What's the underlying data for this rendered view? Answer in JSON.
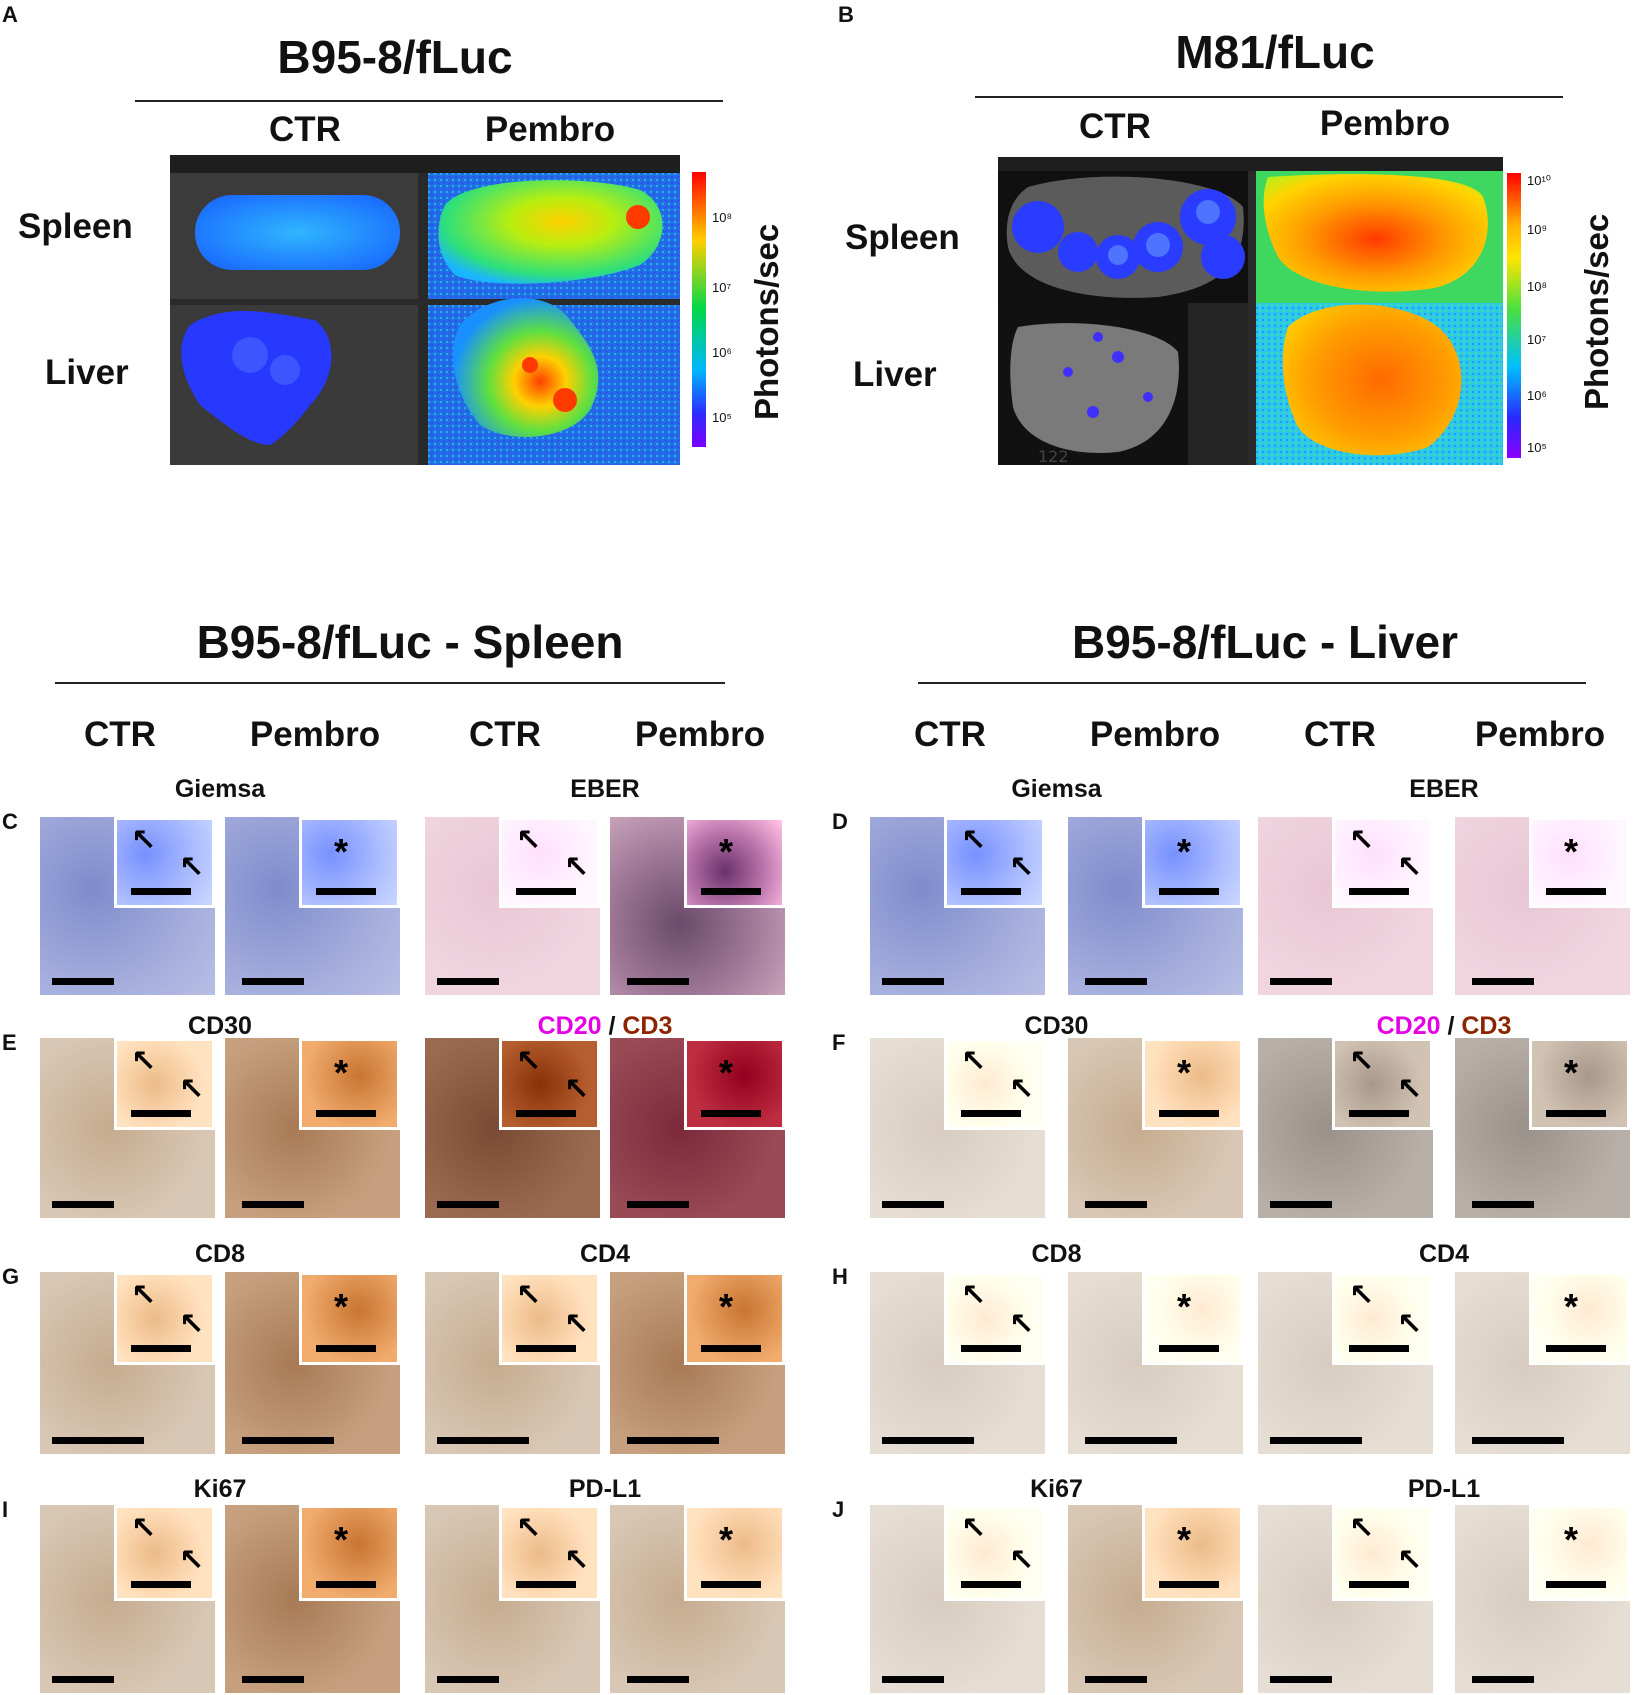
{
  "panels": {
    "A": {
      "letter": "A",
      "title": "B95-8/fLuc",
      "col_ctr": "CTR",
      "col_pembro": "Pembro",
      "row_spleen": "Spleen",
      "row_liver": "Liver",
      "colorbar_label": "Photons/sec",
      "colorbar_ticks": [
        "10⁸",
        "10⁷",
        "10⁶",
        "10⁵"
      ]
    },
    "B": {
      "letter": "B",
      "title": "M81/fLuc",
      "col_ctr": "CTR",
      "col_pembro": "Pembro",
      "row_spleen": "Spleen",
      "row_liver": "Liver",
      "colorbar_label": "Photons/sec",
      "colorbar_ticks": [
        "10¹⁰",
        "10⁹",
        "10⁸",
        "10⁷",
        "10⁶",
        "10⁵"
      ],
      "image_number": "122"
    },
    "spleen_section": {
      "title": "B95-8/fLuc - Spleen",
      "cols": [
        "CTR",
        "Pembro",
        "CTR",
        "Pembro"
      ]
    },
    "liver_section": {
      "title": "B95-8/fLuc - Liver",
      "cols": [
        "CTR",
        "Pembro",
        "CTR",
        "Pembro"
      ]
    },
    "rows_left": [
      {
        "letter": "C",
        "stain1": "Giemsa",
        "stain2": "EBER"
      },
      {
        "letter": "E",
        "stain1": "CD30",
        "stain2a": "CD20",
        "sep": "/",
        "stain2b": "CD3"
      },
      {
        "letter": "G",
        "stain1": "CD8",
        "stain2": "CD4"
      },
      {
        "letter": "I",
        "stain1": "Ki67",
        "stain2": "PD-L1"
      }
    ],
    "rows_right": [
      {
        "letter": "D",
        "stain1": "Giemsa",
        "stain2": "EBER"
      },
      {
        "letter": "F",
        "stain1": "CD30",
        "stain2a": "CD20",
        "sep": "/",
        "stain2b": "CD3"
      },
      {
        "letter": "H",
        "stain1": "CD8",
        "stain2": "CD4"
      },
      {
        "letter": "J",
        "stain1": "Ki67",
        "stain2": "PD-L1"
      }
    ]
  },
  "colors": {
    "cd20": "#e600e6",
    "cd3": "#8b2500",
    "giemsa": "#8f9ad0",
    "eber": "#e8c4d4",
    "ihc": "#c9b59d"
  },
  "glyphs": {
    "arrow": "↖",
    "star": "*"
  }
}
